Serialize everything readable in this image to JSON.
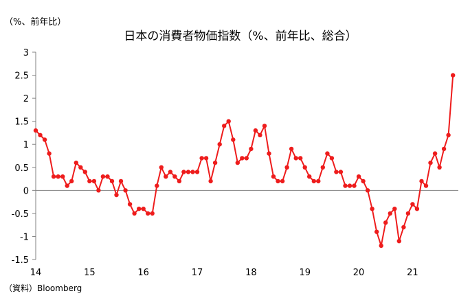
{
  "chart_data": {
    "type": "line",
    "title": "日本の消費者物価指数（%、前年比、総合）",
    "unit_label": "（%、前年比）",
    "source": "（資料）Bloomberg",
    "xlabel": "",
    "ylabel": "",
    "ylim": [
      -1.5,
      3
    ],
    "yticks": [
      -1.5,
      -1,
      -0.5,
      0,
      0.5,
      1,
      1.5,
      2,
      2.5,
      3
    ],
    "ytick_labels": [
      "-1.5",
      "-1",
      "-0.5",
      "0",
      "0.5",
      "1",
      "1.5",
      "2",
      "2.5",
      "3"
    ],
    "xlim": [
      2014,
      2021.85
    ],
    "xtick_labels": [
      {
        "label": "14",
        "year": 2014
      },
      {
        "label": "15",
        "year": 2015
      },
      {
        "label": "16",
        "year": 2016
      },
      {
        "label": "17",
        "year": 2017
      },
      {
        "label": "18",
        "year": 2018
      },
      {
        "label": "19",
        "year": 2019
      },
      {
        "label": "20",
        "year": 2020
      },
      {
        "label": "21",
        "year": 2021
      }
    ],
    "start_year": 2014,
    "grid": false,
    "zero_line": true,
    "colors": {
      "series": "#ee1c1c",
      "axis": "#808080"
    },
    "series": [
      {
        "name": "",
        "values": [
          1.3,
          1.2,
          1.1,
          0.8,
          0.3,
          0.3,
          0.3,
          0.1,
          0.2,
          0.6,
          0.5,
          0.4,
          0.2,
          0.2,
          0.0,
          0.3,
          0.3,
          0.2,
          -0.1,
          0.2,
          0.0,
          -0.3,
          -0.5,
          -0.4,
          -0.4,
          -0.5,
          -0.5,
          0.1,
          0.5,
          0.3,
          0.4,
          0.3,
          0.2,
          0.4,
          0.4,
          0.4,
          0.4,
          0.7,
          0.7,
          0.2,
          0.6,
          1.0,
          1.4,
          1.5,
          1.1,
          0.6,
          0.7,
          0.7,
          0.9,
          1.3,
          1.2,
          1.4,
          0.8,
          0.3,
          0.2,
          0.2,
          0.5,
          0.9,
          0.7,
          0.7,
          0.5,
          0.3,
          0.2,
          0.2,
          0.5,
          0.8,
          0.7,
          0.4,
          0.4,
          0.1,
          0.1,
          0.1,
          0.3,
          0.2,
          0.0,
          -0.4,
          -0.9,
          -1.2,
          -0.7,
          -0.5,
          -0.4,
          -1.1,
          -0.8,
          -0.5,
          -0.3,
          -0.4,
          0.2,
          0.1,
          0.6,
          0.8,
          0.5,
          0.9,
          1.2,
          2.5
        ]
      }
    ]
  }
}
